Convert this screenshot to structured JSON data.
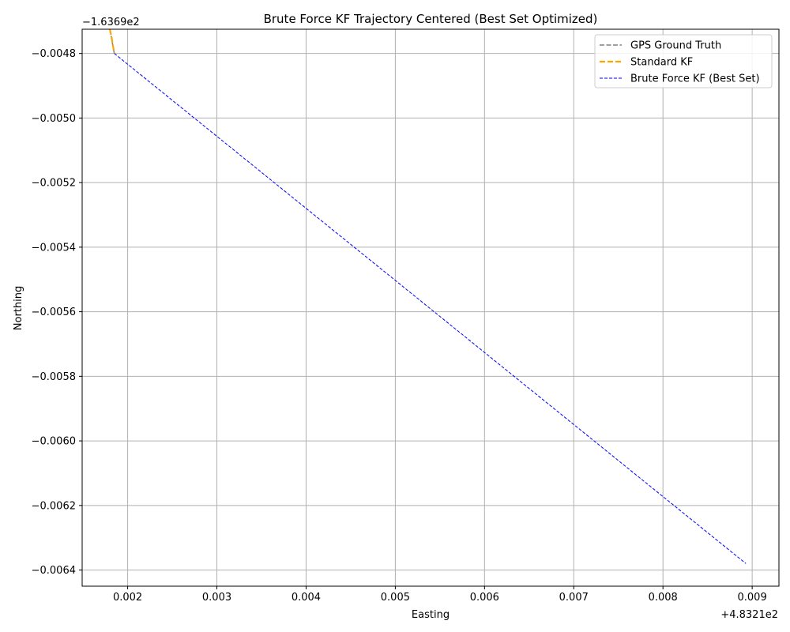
{
  "chart_data": {
    "type": "line",
    "title": "Brute Force KF Trajectory Centered (Best Set Optimized)",
    "xlabel": "Easting",
    "ylabel": "Northing",
    "x_offset_label": "+4.8321e2",
    "y_offset_label": "−1.6369e2",
    "xlim": [
      0.00149,
      0.0093
    ],
    "ylim": [
      -0.00645,
      -0.004725
    ],
    "xticks": [
      0.002,
      0.003,
      0.004,
      0.005,
      0.006,
      0.007,
      0.008,
      0.009
    ],
    "xtick_labels": [
      "0.002",
      "0.003",
      "0.004",
      "0.005",
      "0.006",
      "0.007",
      "0.008",
      "0.009"
    ],
    "yticks": [
      -0.0048,
      -0.005,
      -0.0052,
      -0.0054,
      -0.0056,
      -0.0058,
      -0.006,
      -0.0062,
      -0.0064
    ],
    "ytick_labels": [
      "−0.0048",
      "−0.0050",
      "−0.0052",
      "−0.0054",
      "−0.0056",
      "−0.0058",
      "−0.0060",
      "−0.0062",
      "−0.0064"
    ],
    "grid": true,
    "legend_position": "top-right",
    "series": [
      {
        "name": "GPS Ground Truth",
        "color": "#808080",
        "style": "dashed",
        "x": [
          0.0018,
          0.00185
        ],
        "y": [
          -0.004725,
          -0.0048
        ]
      },
      {
        "name": "Standard KF",
        "color": "#ffa500",
        "style": "dashed",
        "x": [
          0.0018,
          0.00182,
          0.00185
        ],
        "y": [
          -0.004725,
          -0.00475,
          -0.0048
        ]
      },
      {
        "name": "Brute Force KF (Best Set)",
        "color": "#0000ff",
        "style": "dashed",
        "x": [
          0.00185,
          0.00893
        ],
        "y": [
          -0.0048,
          -0.00638
        ]
      }
    ]
  }
}
